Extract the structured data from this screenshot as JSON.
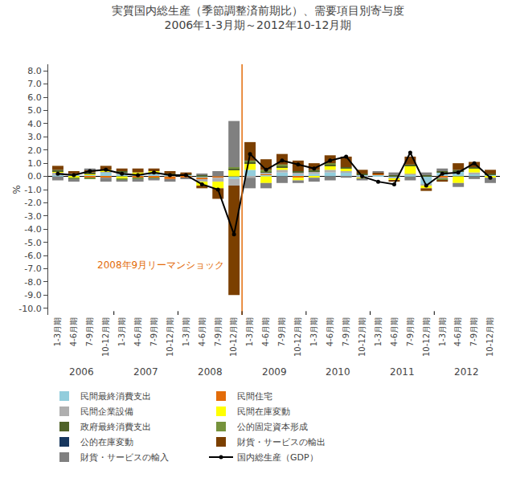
{
  "chart_data": {
    "type": "bar",
    "stacked": true,
    "title": "実質国内総生産（季節調整済前期比）、需要項目別寄与度",
    "subtitle": "2006年1-3月期～2012年10-12月期",
    "ylabel": "%",
    "grid": false,
    "legend": "bottom",
    "categories": [
      "1-3月期",
      "4-6月期",
      "7-9月期",
      "10-12月期",
      "1-3月期",
      "4-6月期",
      "7-9月期",
      "10-12月期",
      "1-3月期",
      "4-6月期",
      "7-9月期",
      "10-12月期",
      "1-3月期",
      "4-6月期",
      "7-9月期",
      "10-12月期",
      "1-3月期",
      "4-6月期",
      "7-9月期",
      "10-12月期",
      "1-3月期",
      "4-6月期",
      "7-9月期",
      "10-12月期",
      "1-3月期",
      "4-6月期",
      "7-9月期",
      "10-12月期"
    ],
    "group_labels": [
      "2006",
      "2007",
      "2008",
      "2009",
      "2010",
      "2011",
      "2012"
    ],
    "ylim": [
      -10.5,
      8.5
    ],
    "yticks": [
      {
        "value": -10.0,
        "label": "-10.0"
      },
      {
        "value": -9.0,
        "label": "-9.0"
      },
      {
        "value": -8.0,
        "label": "-8.0"
      },
      {
        "value": -7.0,
        "label": "-7.0"
      },
      {
        "value": -6.0,
        "label": "-6.0"
      },
      {
        "value": -5.0,
        "label": "-5.0"
      },
      {
        "value": -4.0,
        "label": "-4.0"
      },
      {
        "value": -3.0,
        "label": "-3.0"
      },
      {
        "value": -2.0,
        "label": "-2.0"
      },
      {
        "value": -1.0,
        "label": "-1.0"
      },
      {
        "value": 0.0,
        "label": "0.0"
      },
      {
        "value": 1.0,
        "label": "1.0"
      },
      {
        "value": 2.0,
        "label": "2.0"
      },
      {
        "value": 3.0,
        "label": "3.0"
      },
      {
        "value": 4.0,
        "label": "4.0"
      },
      {
        "value": 5.0,
        "label": "5.0"
      },
      {
        "value": 6.0,
        "label": "6.0"
      },
      {
        "value": 7.0,
        "label": "7.0"
      },
      {
        "value": 8.0,
        "label": "8.0"
      }
    ],
    "annotations": [
      {
        "text": "2008年9月リーマンショック",
        "x": 11.5,
        "color": "#E36C09"
      }
    ],
    "series": [
      {
        "name": "民間最終消費支出",
        "color": "#92CDDC",
        "values": [
          0.1,
          0.1,
          0.1,
          0.3,
          0.2,
          0.1,
          0.2,
          0.1,
          0.1,
          -0.1,
          0.0,
          -0.2,
          0.5,
          0.1,
          0.3,
          0.2,
          0.2,
          0.3,
          0.3,
          0.1,
          0.1,
          -0.1,
          0.1,
          -0.6,
          0.3,
          0.4,
          0.2,
          0.1
        ]
      },
      {
        "name": "民間住宅",
        "color": "#E36C09",
        "values": [
          0.0,
          0.0,
          -0.1,
          -0.1,
          0.0,
          -0.1,
          -0.1,
          -0.2,
          -0.1,
          -0.1,
          -0.1,
          0.0,
          0.0,
          0.1,
          0.0,
          -0.1,
          0.0,
          0.0,
          0.0,
          0.0,
          0.1,
          0.0,
          0.0,
          0.0,
          -0.1,
          0.0,
          0.0,
          0.0
        ]
      },
      {
        "name": "民間企業設備",
        "color": "#AFAFAF",
        "values": [
          0.2,
          0.1,
          0.0,
          0.1,
          0.1,
          0.1,
          0.1,
          0.0,
          0.0,
          -0.2,
          -0.3,
          -0.5,
          -0.1,
          0.1,
          0.2,
          0.1,
          0.2,
          0.2,
          0.1,
          -0.1,
          0.0,
          -0.1,
          0.1,
          -0.1,
          -0.1,
          0.0,
          0.1,
          0.0
        ]
      },
      {
        "name": "民間在庫変動",
        "color": "#FFFF00",
        "values": [
          0.1,
          -0.1,
          0.1,
          0.1,
          -0.2,
          0.1,
          0.1,
          0.0,
          0.0,
          -0.3,
          -0.5,
          0.5,
          0.5,
          -0.5,
          0.2,
          -0.2,
          -0.1,
          0.3,
          0.2,
          -0.1,
          0.0,
          -0.1,
          0.6,
          -0.2,
          0.0,
          -0.5,
          0.3,
          -0.1
        ]
      },
      {
        "name": "政府最終消費支出",
        "color": "#4F6228",
        "values": [
          0.1,
          0.0,
          0.1,
          0.0,
          0.1,
          0.0,
          0.0,
          0.1,
          0.1,
          0.1,
          0.0,
          0.1,
          0.1,
          0.1,
          0.1,
          0.1,
          0.1,
          0.1,
          0.1,
          0.1,
          0.0,
          0.1,
          0.1,
          0.1,
          0.1,
          0.1,
          0.1,
          0.1
        ]
      },
      {
        "name": "公的固定資本形成",
        "color": "#76933C",
        "values": [
          0.0,
          -0.1,
          -0.1,
          0.0,
          -0.1,
          -0.1,
          -0.1,
          0.0,
          0.0,
          0.0,
          0.0,
          0.1,
          0.1,
          0.1,
          0.1,
          0.0,
          0.0,
          0.1,
          0.0,
          0.0,
          0.0,
          0.0,
          0.0,
          0.0,
          -0.1,
          0.0,
          0.0,
          0.0
        ]
      },
      {
        "name": "公的在庫変動",
        "color": "#17375E",
        "values": [
          0.0,
          0.0,
          0.0,
          0.0,
          0.0,
          0.0,
          0.0,
          0.0,
          0.0,
          0.0,
          0.0,
          0.0,
          0.0,
          0.0,
          0.0,
          0.0,
          0.0,
          0.0,
          0.0,
          0.0,
          0.0,
          0.0,
          0.0,
          0.0,
          0.0,
          0.0,
          0.0,
          0.0
        ]
      },
      {
        "name": "財貨・サービスの輸出",
        "color": "#7B3F00",
        "values": [
          0.3,
          0.2,
          0.2,
          0.3,
          0.2,
          0.3,
          0.2,
          0.2,
          0.1,
          -0.2,
          -0.8,
          -8.3,
          1.4,
          0.8,
          0.8,
          0.8,
          0.5,
          0.6,
          0.8,
          0.3,
          0.1,
          -0.1,
          0.6,
          -0.2,
          -0.1,
          0.5,
          0.4,
          0.3
        ]
      },
      {
        "name": "財貨・サービスの輸入",
        "color": "#808080",
        "values": [
          -0.3,
          -0.2,
          0.1,
          -0.3,
          -0.1,
          -0.2,
          -0.1,
          -0.2,
          -0.1,
          0.1,
          0.4,
          3.5,
          -0.8,
          -0.4,
          -0.5,
          -0.2,
          -0.3,
          -0.3,
          -0.1,
          -0.1,
          0.1,
          0.2,
          -0.3,
          0.2,
          0.2,
          -0.3,
          -0.2,
          -0.4
        ]
      },
      {
        "name": "国内総生産（GDP）",
        "type": "line",
        "color": "#000000",
        "marker": "circle",
        "values": [
          0.2,
          0.1,
          0.4,
          0.5,
          0.2,
          0.1,
          0.3,
          0.1,
          0.1,
          -0.6,
          -1.0,
          -4.4,
          1.7,
          0.5,
          1.2,
          0.9,
          0.6,
          1.2,
          1.5,
          0.0,
          -0.4,
          -0.6,
          1.8,
          -0.7,
          0.2,
          0.3,
          1.0,
          -0.1
        ]
      }
    ]
  }
}
